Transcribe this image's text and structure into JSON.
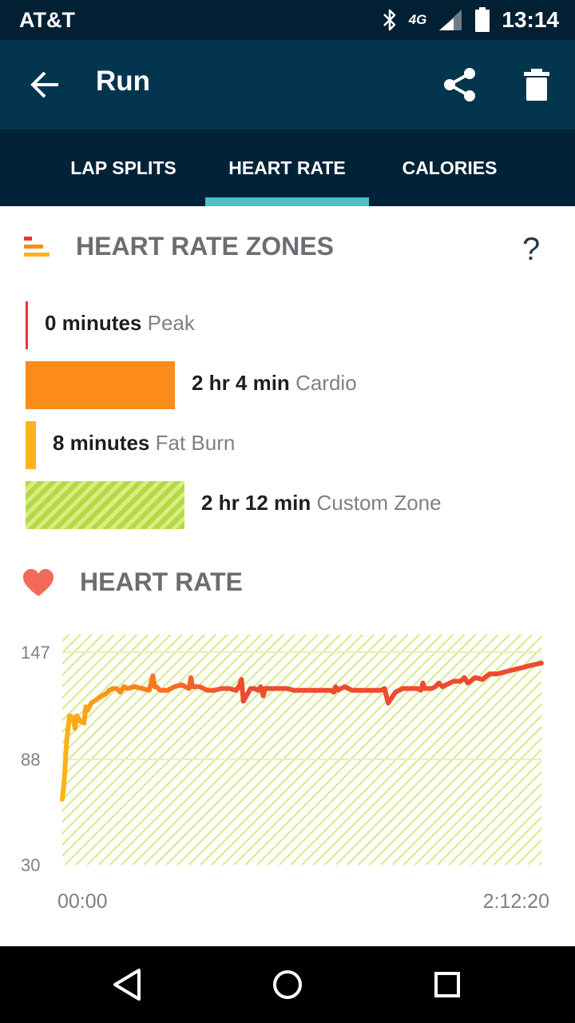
{
  "status_bar": {
    "carrier": "AT&T",
    "network": "4G",
    "time": "13:14"
  },
  "app_bar": {
    "title": "Run"
  },
  "tabs": [
    {
      "label": "LAP SPLITS",
      "active": false
    },
    {
      "label": "HEART RATE",
      "active": true
    },
    {
      "label": "CALORIES",
      "active": false
    }
  ],
  "zones_section": {
    "title": "HEART RATE ZONES",
    "help": "?",
    "zones": [
      {
        "value": "0 minutes",
        "name": "Peak",
        "color": "#e8323c",
        "share": 0.0
      },
      {
        "value": "2 hr 4 min",
        "name": "Cardio",
        "color": "#fb8c1a",
        "share": 0.94
      },
      {
        "value": "8 minutes",
        "name": "Fat Burn",
        "color": "#fbb41a",
        "share": 0.06
      },
      {
        "value": "2 hr 12 min",
        "name": "Custom Zone",
        "color": "#b6d846",
        "share": 1.0
      }
    ]
  },
  "heart_rate_section": {
    "title": "HEART RATE"
  },
  "chart_data": {
    "type": "line",
    "title": "",
    "xlabel": "",
    "ylabel": "",
    "y_ticks": [
      "147",
      "88",
      "30"
    ],
    "x_ticks": [
      "00:00",
      "2:12:20"
    ],
    "ylim": [
      30,
      147
    ],
    "xlim": [
      0,
      132.33
    ],
    "x_unit": "minutes",
    "band": [
      30,
      147
    ],
    "series": [
      {
        "x": [
          0,
          0.6,
          1.2,
          2,
          3,
          3.5,
          4,
          5,
          6,
          6.5,
          7,
          8,
          9.5,
          11,
          12,
          13,
          14,
          15,
          16,
          17,
          18,
          20,
          22,
          24,
          25,
          25.5,
          26,
          27,
          29,
          31,
          33,
          35,
          35.5,
          36,
          38,
          40,
          42,
          44,
          46,
          48,
          49,
          49.5,
          50,
          52,
          53,
          54,
          54.8,
          55.5,
          56,
          58,
          60,
          62,
          64,
          66,
          68,
          70,
          72,
          74,
          75,
          75.5,
          76,
          78,
          80,
          82,
          84,
          86,
          88,
          89,
          90,
          92,
          94,
          96,
          98,
          99,
          99.6,
          100,
          102,
          103,
          104,
          105,
          106,
          108,
          110,
          111,
          112,
          114,
          116,
          118,
          120,
          122,
          124,
          126,
          128,
          130,
          132.3
        ],
        "y": [
          66,
          78,
          98,
          112,
          111,
          105,
          112,
          109,
          108,
          117,
          115,
          119,
          121,
          123,
          124,
          126,
          127,
          127,
          125,
          128,
          127,
          128,
          127,
          126,
          134,
          128,
          128,
          126,
          126,
          128,
          129,
          127,
          133,
          128,
          128,
          126,
          126,
          127,
          127,
          126,
          129,
          132,
          120,
          127,
          127,
          126,
          128,
          123,
          127,
          127,
          127,
          127,
          126,
          126,
          126,
          126,
          126,
          126,
          125,
          128,
          126,
          128,
          126,
          126,
          126,
          126,
          126,
          127,
          119,
          125,
          127,
          127,
          127,
          126,
          130,
          127,
          127,
          128,
          130,
          128,
          129,
          131,
          131,
          133,
          130,
          133,
          132,
          135,
          135,
          136,
          137,
          138,
          139,
          140,
          141
        ]
      }
    ]
  },
  "colors": {
    "accent": "#4cc2c4",
    "app_bar": "#04354f",
    "tab_bar": "#022237",
    "status_bar": "#022033",
    "line_start": "#fbb41a",
    "line_end": "#e8323c",
    "heart": "#f26a5a"
  }
}
